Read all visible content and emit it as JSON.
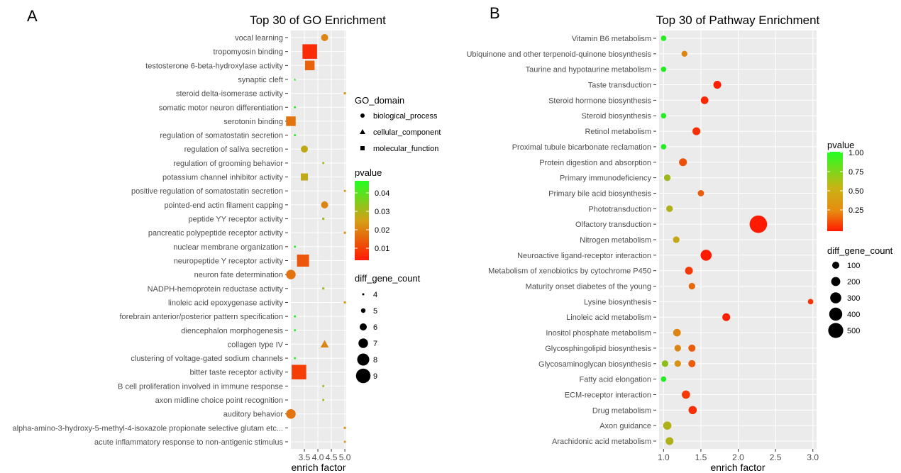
{
  "panels": [
    {
      "letter": "A",
      "title": "Top 30 of GO Enrichment",
      "xlabel": "enrich factor",
      "xticks": [
        3.5,
        4.0,
        4.5,
        5.0
      ],
      "xtick_labels": [
        "3.5",
        "4.0",
        "4.5",
        "5.0"
      ],
      "pvalue_legend": {
        "title": "pvalue",
        "ticks": [
          "0.04",
          "0.03",
          "0.02",
          "0.01"
        ]
      },
      "shape_legend": {
        "title": "GO_domain",
        "items": [
          "biological_process",
          "cellular_component",
          "molecular_function"
        ]
      },
      "size_legend": {
        "title": "diff_gene_count",
        "items": [
          "4",
          "5",
          "6",
          "7",
          "8",
          "9"
        ]
      }
    },
    {
      "letter": "B",
      "title": "Top 30 of Pathway Enrichment",
      "xlabel": "enrich factor",
      "xticks": [
        1.0,
        1.5,
        2.0,
        2.5,
        3.0
      ],
      "xtick_labels": [
        "1.0",
        "1.5",
        "2.0",
        "2.5",
        "3.0"
      ],
      "pvalue_legend": {
        "title": "pvalue",
        "ticks": [
          "1.00",
          "0.75",
          "0.50",
          "0.25"
        ]
      },
      "size_legend": {
        "title": "diff_gene_count",
        "items": [
          "100",
          "200",
          "300",
          "400",
          "500"
        ]
      }
    }
  ],
  "colors": {
    "panel_bg": "#ebebeb",
    "grid": "#ffffff",
    "low_p": "#ff1a00",
    "mid_p": "#d4a017",
    "high_p": "#22ee22"
  },
  "chart_data": [
    {
      "type": "scatter",
      "title": "Top 30 of GO Enrichment",
      "xlabel": "enrich factor",
      "xlim": [
        3.0,
        5.05
      ],
      "categories": [
        "vocal learning",
        "tropomyosin binding",
        "testosterone 6-beta-hydroxylase activity",
        "synaptic cleft",
        "steroid delta-isomerase activity",
        "somatic motor neuron differentiation",
        "serotonin binding",
        "regulation of somatostatin secretion",
        "regulation of saliva secretion",
        "regulation of grooming behavior",
        "potassium channel inhibitor activity",
        "positive regulation of somatostatin secretion",
        "pointed-end actin filament capping",
        "peptide YY receptor activity",
        "pancreatic polypeptide receptor activity",
        "nuclear membrane organization",
        "neuropeptide Y receptor activity",
        "neuron fate determination",
        "NADPH-hemoprotein reductase activity",
        "linoleic acid epoxygenase activity",
        "forebrain anterior/posterior pattern specification",
        "diencephalon morphogenesis",
        "collagen type IV",
        "clustering of voltage-gated sodium channels",
        "bitter taste receptor activity",
        "B cell proliferation involved in immune response",
        "axon midline choice point recognition",
        "auditory behavior",
        "alpha-amino-3-hydroxy-5-methyl-4-isoxazole propionate selective glutam etc...",
        "acute inflammatory response to non-antigenic stimulus"
      ],
      "points": [
        {
          "term": "vocal learning",
          "x": 4.25,
          "pvalue": 0.018,
          "count": 6,
          "domain": "biological_process"
        },
        {
          "term": "tropomyosin binding",
          "x": 3.7,
          "pvalue": 0.003,
          "count": 9,
          "domain": "molecular_function"
        },
        {
          "term": "testosterone 6-beta-hydroxylase activity",
          "x": 3.7,
          "pvalue": 0.012,
          "count": 7,
          "domain": "molecular_function"
        },
        {
          "term": "synaptic cleft",
          "x": 3.15,
          "pvalue": 0.045,
          "count": 4,
          "domain": "cellular_component"
        },
        {
          "term": "steroid delta-isomerase activity",
          "x": 5.0,
          "pvalue": 0.02,
          "count": 4,
          "domain": "molecular_function"
        },
        {
          "term": "somatic motor neuron differentiation",
          "x": 3.15,
          "pvalue": 0.045,
          "count": 4,
          "domain": "biological_process"
        },
        {
          "term": "serotonin binding",
          "x": 3.0,
          "pvalue": 0.015,
          "count": 7,
          "domain": "molecular_function"
        },
        {
          "term": "regulation of somatostatin secretion",
          "x": 3.15,
          "pvalue": 0.045,
          "count": 4,
          "domain": "biological_process"
        },
        {
          "term": "regulation of saliva secretion",
          "x": 3.5,
          "pvalue": 0.025,
          "count": 6,
          "domain": "biological_process"
        },
        {
          "term": "regulation of grooming behavior",
          "x": 4.2,
          "pvalue": 0.03,
          "count": 4,
          "domain": "biological_process"
        },
        {
          "term": "potassium channel inhibitor activity",
          "x": 3.5,
          "pvalue": 0.025,
          "count": 6,
          "domain": "molecular_function"
        },
        {
          "term": "positive regulation of somatostatin secretion",
          "x": 5.0,
          "pvalue": 0.02,
          "count": 4,
          "domain": "biological_process"
        },
        {
          "term": "pointed-end actin filament capping",
          "x": 4.25,
          "pvalue": 0.018,
          "count": 6,
          "domain": "biological_process"
        },
        {
          "term": "peptide YY receptor activity",
          "x": 4.2,
          "pvalue": 0.03,
          "count": 4,
          "domain": "molecular_function"
        },
        {
          "term": "pancreatic polypeptide receptor activity",
          "x": 5.0,
          "pvalue": 0.02,
          "count": 4,
          "domain": "molecular_function"
        },
        {
          "term": "nuclear membrane organization",
          "x": 3.15,
          "pvalue": 0.045,
          "count": 4,
          "domain": "biological_process"
        },
        {
          "term": "neuropeptide Y receptor activity",
          "x": 3.45,
          "pvalue": 0.01,
          "count": 8,
          "domain": "molecular_function"
        },
        {
          "term": "neuron fate determination",
          "x": 3.0,
          "pvalue": 0.015,
          "count": 7,
          "domain": "biological_process"
        },
        {
          "term": "NADPH-hemoprotein reductase activity",
          "x": 4.2,
          "pvalue": 0.03,
          "count": 4,
          "domain": "molecular_function"
        },
        {
          "term": "linoleic acid epoxygenase activity",
          "x": 5.0,
          "pvalue": 0.02,
          "count": 4,
          "domain": "molecular_function"
        },
        {
          "term": "forebrain anterior/posterior pattern specification",
          "x": 3.15,
          "pvalue": 0.045,
          "count": 4,
          "domain": "biological_process"
        },
        {
          "term": "diencephalon morphogenesis",
          "x": 3.15,
          "pvalue": 0.045,
          "count": 4,
          "domain": "biological_process"
        },
        {
          "term": "collagen type IV",
          "x": 4.25,
          "pvalue": 0.018,
          "count": 6,
          "domain": "cellular_component"
        },
        {
          "term": "clustering of voltage-gated sodium channels",
          "x": 3.15,
          "pvalue": 0.045,
          "count": 4,
          "domain": "biological_process"
        },
        {
          "term": "bitter taste receptor activity",
          "x": 3.3,
          "pvalue": 0.006,
          "count": 9,
          "domain": "molecular_function"
        },
        {
          "term": "B cell proliferation involved in immune response",
          "x": 4.2,
          "pvalue": 0.03,
          "count": 4,
          "domain": "biological_process"
        },
        {
          "term": "axon midline choice point recognition",
          "x": 4.2,
          "pvalue": 0.03,
          "count": 4,
          "domain": "biological_process"
        },
        {
          "term": "auditory behavior",
          "x": 3.0,
          "pvalue": 0.015,
          "count": 7,
          "domain": "biological_process"
        },
        {
          "term": "alpha-amino-3-hydroxy-5-methyl-4-isoxazole propionate selective glutam etc...",
          "x": 5.0,
          "pvalue": 0.02,
          "count": 4,
          "domain": "molecular_function"
        },
        {
          "term": "acute inflammatory response to non-antigenic stimulus",
          "x": 5.0,
          "pvalue": 0.02,
          "count": 4,
          "domain": "biological_process"
        }
      ]
    },
    {
      "type": "scatter",
      "title": "Top 30 of Pathway Enrichment",
      "xlabel": "enrich factor",
      "xlim": [
        0.94,
        3.05
      ],
      "categories": [
        "Vitamin B6 metabolism",
        "Ubiquinone and other terpenoid-quinone biosynthesis",
        "Taurine and hypotaurine metabolism",
        "Taste transduction",
        "Steroid hormone biosynthesis",
        "Steroid biosynthesis",
        "Retinol metabolism",
        "Proximal tubule bicarbonate reclamation",
        "Protein digestion and absorption",
        "Primary immunodeficiency",
        "Primary bile acid biosynthesis",
        "Phototransduction",
        "Olfactory transduction",
        "Nitrogen metabolism",
        "Neuroactive ligand-receptor interaction",
        "Metabolism of xenobiotics by cytochrome P450",
        "Maturity onset diabetes of the young",
        "Lysine biosynthesis",
        "Linoleic acid metabolism",
        "Inositol phosphate metabolism",
        "Glycosphingolipid biosynthesis",
        "Glycosaminoglycan biosynthesis",
        "Fatty acid elongation",
        "ECM-receptor interaction",
        "Drug metabolism",
        "Axon guidance",
        "Arachidonic acid metabolism"
      ],
      "points": [
        {
          "term": "Vitamin B6 metabolism",
          "x": 1.0,
          "pvalue": 1.0,
          "count": 10
        },
        {
          "term": "Ubiquinone and other terpenoid-quinone biosynthesis",
          "x": 1.28,
          "pvalue": 0.4,
          "count": 15
        },
        {
          "term": "Taurine and hypotaurine metabolism",
          "x": 1.0,
          "pvalue": 1.0,
          "count": 10
        },
        {
          "term": "Taste transduction",
          "x": 1.72,
          "pvalue": 0.02,
          "count": 50
        },
        {
          "term": "Steroid hormone biosynthesis",
          "x": 1.55,
          "pvalue": 0.05,
          "count": 45
        },
        {
          "term": "Steroid biosynthesis",
          "x": 1.0,
          "pvalue": 1.0,
          "count": 10
        },
        {
          "term": "Retinol metabolism",
          "x": 1.44,
          "pvalue": 0.08,
          "count": 50
        },
        {
          "term": "Proximal tubule bicarbonate reclamation",
          "x": 1.0,
          "pvalue": 1.0,
          "count": 10
        },
        {
          "term": "Protein digestion and absorption",
          "x": 1.26,
          "pvalue": 0.2,
          "count": 50
        },
        {
          "term": "Primary immunodeficiency",
          "x": 1.05,
          "pvalue": 0.65,
          "count": 25
        },
        {
          "term": "Primary bile acid biosynthesis",
          "x": 1.5,
          "pvalue": 0.25,
          "count": 20
        },
        {
          "term": "Phototransduction",
          "x": 1.08,
          "pvalue": 0.6,
          "count": 25
        },
        {
          "term": "Olfactory transduction",
          "x": 2.27,
          "pvalue": 0.001,
          "count": 520
        },
        {
          "term": "Nitrogen metabolism",
          "x": 1.17,
          "pvalue": 0.55,
          "count": 25
        },
        {
          "term": "Neuroactive ligand-receptor interaction",
          "x": 1.57,
          "pvalue": 0.005,
          "count": 150
        },
        {
          "term": "Metabolism of xenobiotics by cytochrome P450",
          "x": 1.34,
          "pvalue": 0.12,
          "count": 50
        },
        {
          "term": "Maturity onset diabetes of the young",
          "x": 1.38,
          "pvalue": 0.3,
          "count": 25
        },
        {
          "term": "Lysine biosynthesis",
          "x": 2.97,
          "pvalue": 0.1,
          "count": 10
        },
        {
          "term": "Linoleic acid metabolism",
          "x": 1.84,
          "pvalue": 0.02,
          "count": 50
        },
        {
          "term": "Inositol phosphate metabolism",
          "x": 1.18,
          "pvalue": 0.4,
          "count": 45
        },
        {
          "term": "Glycosphingolipid biosynthesis",
          "x": 1.19,
          "pvalue": 0.4,
          "count": 25
        },
        {
          "term": "Glycosphingolipid biosynthesis",
          "x": 1.38,
          "pvalue": 0.25,
          "count": 35
        },
        {
          "term": "Glycosaminoglycan biosynthesis",
          "x": 1.02,
          "pvalue": 0.7,
          "count": 25
        },
        {
          "term": "Glycosaminoglycan biosynthesis",
          "x": 1.19,
          "pvalue": 0.45,
          "count": 25
        },
        {
          "term": "Glycosaminoglycan biosynthesis",
          "x": 1.38,
          "pvalue": 0.25,
          "count": 35
        },
        {
          "term": "Fatty acid elongation",
          "x": 1.0,
          "pvalue": 1.0,
          "count": 10
        },
        {
          "term": "ECM-receptor interaction",
          "x": 1.3,
          "pvalue": 0.12,
          "count": 60
        },
        {
          "term": "Drug metabolism",
          "x": 1.39,
          "pvalue": 0.08,
          "count": 60
        },
        {
          "term": "Axon guidance",
          "x": 1.05,
          "pvalue": 0.6,
          "count": 60
        },
        {
          "term": "Arachidonic acid metabolism",
          "x": 1.08,
          "pvalue": 0.6,
          "count": 50
        }
      ]
    }
  ]
}
